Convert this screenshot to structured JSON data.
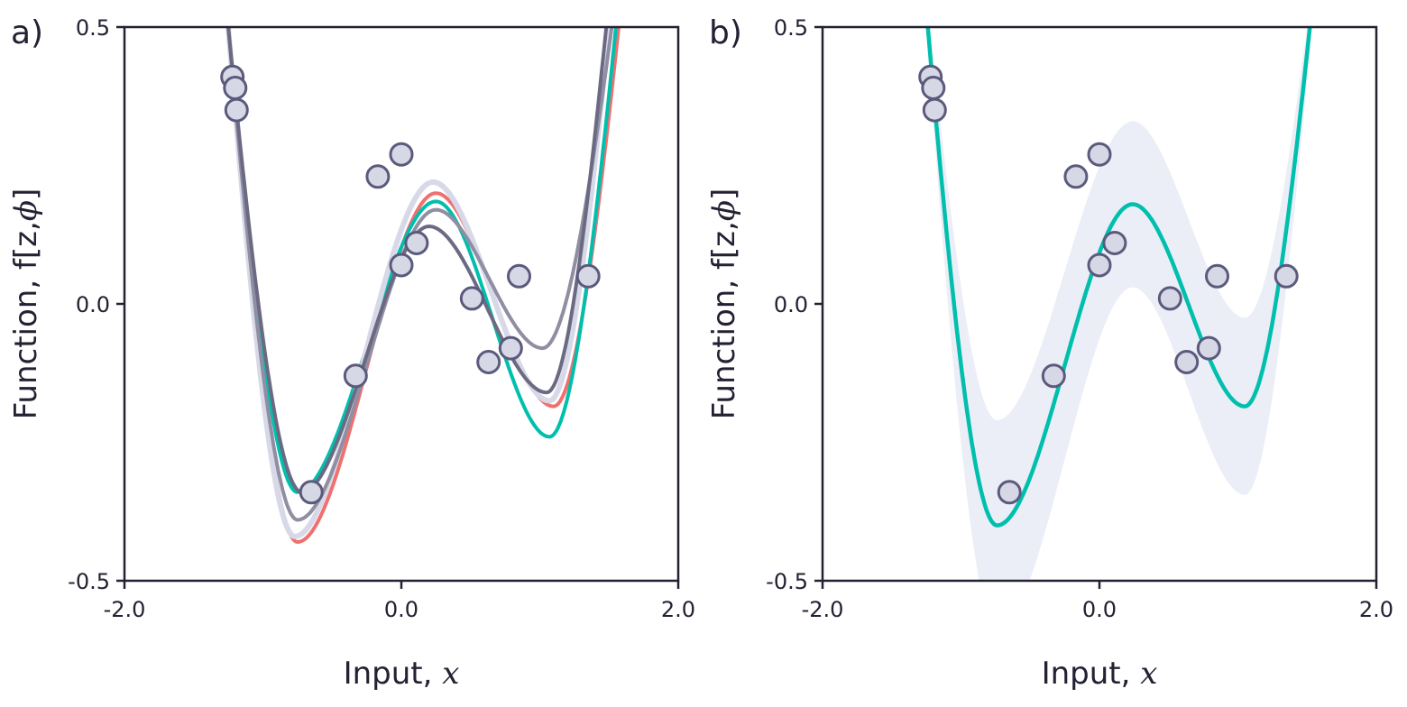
{
  "chart_data": [
    {
      "panel_label": "a)",
      "type": "line",
      "xlabel": "Input, ",
      "xlabel_var": "x",
      "ylabel": "Function, f[z,",
      "ylabel_sym": "ϕ",
      "ylabel_close": "]",
      "xlim": [
        -2.0,
        2.0
      ],
      "ylim": [
        -0.5,
        0.5
      ],
      "xticks": [
        -2.0,
        0.0,
        2.0
      ],
      "xtick_labels": [
        "-2.0",
        "0.0",
        "2.0"
      ],
      "yticks": [
        -0.5,
        0.0,
        0.5
      ],
      "ytick_labels": [
        "-0.5",
        "0.0",
        "0.5"
      ],
      "grid": false,
      "points": {
        "color": "#d6d8e6",
        "edge_color": "#5b5a7c",
        "x": [
          -1.22,
          -1.2,
          -1.19,
          -0.65,
          -0.33,
          -0.17,
          0.0,
          0.0,
          0.11,
          0.51,
          0.63,
          0.79,
          0.85,
          1.35
        ],
        "y": [
          0.41,
          0.39,
          0.35,
          -0.34,
          -0.13,
          0.23,
          0.27,
          0.07,
          0.11,
          0.01,
          -0.105,
          -0.08,
          0.05,
          0.05
        ]
      },
      "series": [
        {
          "color": "#f07070",
          "width": 4,
          "x": [
            -1.25,
            -0.75,
            0.25,
            1.1,
            1.57
          ],
          "y": [
            0.5,
            -0.43,
            0.2,
            -0.185,
            0.5
          ]
        },
        {
          "color": "#00bfad",
          "width": 4,
          "x": [
            -1.25,
            -0.75,
            0.25,
            1.07,
            1.55
          ],
          "y": [
            0.5,
            -0.34,
            0.185,
            -0.24,
            0.5
          ]
        },
        {
          "color": "#d7d9e8",
          "width": 6,
          "x": [
            -1.25,
            -0.77,
            0.23,
            1.07,
            1.5
          ],
          "y": [
            0.5,
            -0.42,
            0.22,
            -0.175,
            0.5
          ]
        },
        {
          "color": "#8f8ea2",
          "width": 4,
          "x": [
            -1.25,
            -0.75,
            0.25,
            1.02,
            1.52
          ],
          "y": [
            0.5,
            -0.39,
            0.17,
            -0.08,
            0.5
          ]
        },
        {
          "color": "#6b6a82",
          "width": 4,
          "x": [
            -1.25,
            -0.72,
            0.2,
            1.05,
            1.48
          ],
          "y": [
            0.5,
            -0.34,
            0.14,
            -0.16,
            0.5
          ]
        }
      ]
    },
    {
      "panel_label": "b)",
      "type": "line",
      "xlabel": "Input, ",
      "xlabel_var": "x",
      "ylabel": "Function, f[z,",
      "ylabel_sym": "ϕ",
      "ylabel_close": "]",
      "xlim": [
        -2.0,
        2.0
      ],
      "ylim": [
        -0.5,
        0.5
      ],
      "xticks": [
        -2.0,
        0.0,
        2.0
      ],
      "xtick_labels": [
        "-2.0",
        "0.0",
        "2.0"
      ],
      "yticks": [
        -0.5,
        0.0,
        0.5
      ],
      "ytick_labels": [
        "-0.5",
        "0.0",
        "0.5"
      ],
      "grid": false,
      "band_color": "#eceef7",
      "band_halfwidth": [
        0.04,
        0.19,
        0.15,
        0.16,
        0.04
      ],
      "points": {
        "color": "#d6d8e6",
        "edge_color": "#5b5a7c",
        "x": [
          -1.22,
          -1.2,
          -1.19,
          -0.65,
          -0.33,
          -0.17,
          0.0,
          0.0,
          0.11,
          0.51,
          0.63,
          0.79,
          0.85,
          1.35
        ],
        "y": [
          0.41,
          0.39,
          0.35,
          -0.34,
          -0.13,
          0.23,
          0.27,
          0.07,
          0.11,
          0.01,
          -0.105,
          -0.08,
          0.05,
          0.05
        ]
      },
      "series": [
        {
          "color": "#00bfad",
          "width": 4.5,
          "x": [
            -1.24,
            -0.74,
            0.24,
            1.05,
            1.52
          ],
          "y": [
            0.5,
            -0.4,
            0.18,
            -0.185,
            0.5
          ]
        }
      ]
    }
  ]
}
